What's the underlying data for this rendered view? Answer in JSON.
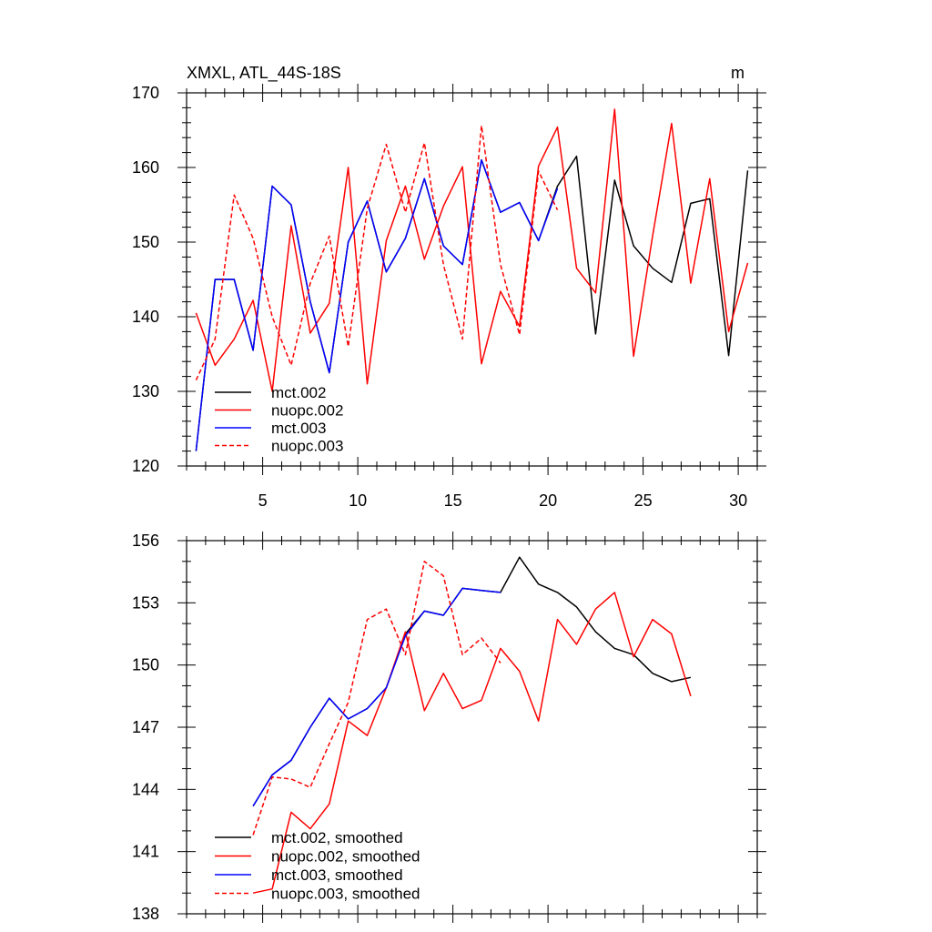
{
  "chart_data": [
    {
      "type": "line",
      "title": "XMXL, ATL_44S-18S",
      "units": "m",
      "xlim": [
        1,
        31
      ],
      "ylim": [
        120,
        170
      ],
      "xticks": [
        5,
        10,
        15,
        20,
        25,
        30
      ],
      "yticks": [
        120,
        130,
        140,
        150,
        160,
        170
      ],
      "x_minor": 1,
      "y_minor": 2,
      "legend_position": "bottom-left",
      "series": [
        {
          "name": "mct.002",
          "color": "#000000",
          "dash": "solid",
          "x": [
            1.5,
            2.5,
            3.5,
            4.5,
            5.5,
            6.5,
            7.5,
            8.5,
            9.5,
            10.5,
            11.5,
            12.5,
            13.5,
            14.5,
            15.5,
            16.5,
            17.5,
            18.5,
            19.5,
            20.5,
            21.5,
            22.5,
            23.5,
            24.5,
            25.5,
            26.5,
            27.5,
            28.5,
            29.5,
            30.5
          ],
          "values": [
            122,
            145,
            145,
            135.5,
            157.5,
            155,
            142,
            132.5,
            150,
            155.5,
            146,
            150.5,
            158.5,
            149.5,
            147,
            161,
            154,
            155.3,
            150.2,
            157.5,
            161.5,
            137.7,
            158.3,
            149.5,
            146.5,
            144.6,
            155.2,
            155.8,
            134.8,
            159.6
          ]
        },
        {
          "name": "nuopc.002",
          "color": "#ff0000",
          "dash": "solid",
          "x": [
            1.5,
            2.5,
            3.5,
            4.5,
            5.5,
            6.5,
            7.5,
            8.5,
            9.5,
            10.5,
            11.5,
            12.5,
            13.5,
            14.5,
            15.5,
            16.5,
            17.5,
            18.5,
            19.5,
            20.5,
            21.5,
            22.5,
            23.5,
            24.5,
            25.5,
            26.5,
            27.5,
            28.5,
            29.5,
            30.5
          ],
          "values": [
            140.5,
            133.5,
            137,
            142.2,
            130,
            152.2,
            137.8,
            141.8,
            160,
            131,
            150.2,
            157.5,
            147.7,
            154.8,
            160.1,
            133.7,
            143.4,
            138.7,
            160.2,
            165.4,
            146.5,
            143.2,
            167.8,
            134.7,
            150.8,
            165.9,
            144.5,
            158.5,
            138,
            147.2
          ]
        },
        {
          "name": "mct.003",
          "color": "#0000ff",
          "dash": "solid",
          "x": [
            1.5,
            2.5,
            3.5,
            4.5,
            5.5,
            6.5,
            7.5,
            8.5,
            9.5,
            10.5,
            11.5,
            12.5,
            13.5,
            14.5,
            15.5,
            16.5,
            17.5,
            18.5,
            19.5,
            20.5
          ],
          "values": [
            122,
            145,
            145,
            135.5,
            157.5,
            155,
            142,
            132.5,
            150,
            155.5,
            146,
            150.5,
            158.5,
            149.5,
            147,
            161,
            154,
            155.3,
            150.2,
            157.2
          ]
        },
        {
          "name": "nuopc.003",
          "color": "#ff0000",
          "dash": "dashed",
          "x": [
            1.5,
            2.5,
            3.5,
            4.5,
            5.5,
            6.5,
            7.5,
            8.5,
            9.5,
            10.5,
            11.5,
            12.5,
            13.5,
            14.5,
            15.5,
            16.5,
            17.5,
            18.5,
            19.5,
            20.5
          ],
          "values": [
            131.5,
            137,
            156.3,
            150.5,
            140,
            133.5,
            144.5,
            150.8,
            136,
            154.5,
            163.1,
            154,
            163.3,
            147,
            137,
            165.6,
            147,
            137.6,
            159.5,
            154.3
          ]
        }
      ]
    },
    {
      "type": "line",
      "title": "",
      "xlim": [
        1,
        31
      ],
      "ylim": [
        138,
        156
      ],
      "xticks": [
        5,
        10,
        15,
        20,
        25,
        30
      ],
      "yticks": [
        138,
        141,
        144,
        147,
        150,
        153,
        156
      ],
      "x_minor": 1,
      "y_minor": 1,
      "legend_position": "bottom-left",
      "series": [
        {
          "name": "mct.002, smoothed",
          "color": "#000000",
          "dash": "solid",
          "x": [
            4.5,
            5.5,
            6.5,
            7.5,
            8.5,
            9.5,
            10.5,
            11.5,
            12.5,
            13.5,
            14.5,
            15.5,
            16.5,
            17.5,
            18.5,
            19.5,
            20.5,
            21.5,
            22.5,
            23.5,
            24.5,
            25.5,
            26.5,
            27.5
          ],
          "values": [
            143.2,
            144.7,
            145.4,
            147,
            148.4,
            147.4,
            147.9,
            148.9,
            151.5,
            152.6,
            152.4,
            153.7,
            153.6,
            153.5,
            155.2,
            153.9,
            153.5,
            152.8,
            151.6,
            150.8,
            150.5,
            149.6,
            149.2,
            149.4
          ]
        },
        {
          "name": "nuopc.002, smoothed",
          "color": "#ff0000",
          "dash": "solid",
          "x": [
            4.5,
            5.5,
            6.5,
            7.5,
            8.5,
            9.5,
            10.5,
            11.5,
            12.5,
            13.5,
            14.5,
            15.5,
            16.5,
            17.5,
            18.5,
            19.5,
            20.5,
            21.5,
            22.5,
            23.5,
            24.5,
            25.5,
            26.5,
            27.5
          ],
          "values": [
            139,
            139.2,
            142.9,
            142.1,
            143.3,
            147.3,
            146.6,
            148.9,
            151.6,
            147.8,
            149.6,
            147.9,
            148.3,
            150.8,
            149.7,
            147.3,
            152.2,
            151,
            152.7,
            153.5,
            150.4,
            152.2,
            151.5,
            148.5
          ]
        },
        {
          "name": "mct.003, smoothed",
          "color": "#0000ff",
          "dash": "solid",
          "x": [
            4.5,
            5.5,
            6.5,
            7.5,
            8.5,
            9.5,
            10.5,
            11.5,
            12.5,
            13.5,
            14.5,
            15.5,
            16.5,
            17.5
          ],
          "values": [
            143.2,
            144.7,
            145.4,
            147,
            148.4,
            147.4,
            147.9,
            148.9,
            151.4,
            152.6,
            152.4,
            153.7,
            153.6,
            153.5
          ]
        },
        {
          "name": "nuopc.003, smoothed",
          "color": "#ff0000",
          "dash": "dashed",
          "x": [
            4.5,
            5.5,
            6.5,
            7.5,
            8.5,
            9.5,
            10.5,
            11.5,
            12.5,
            13.5,
            14.5,
            15.5,
            16.5,
            17.5
          ],
          "values": [
            141.8,
            144.6,
            144.5,
            144.1,
            146.2,
            148.2,
            152.2,
            152.7,
            150.5,
            155,
            154.3,
            150.5,
            151.3,
            150.1
          ]
        }
      ]
    }
  ]
}
